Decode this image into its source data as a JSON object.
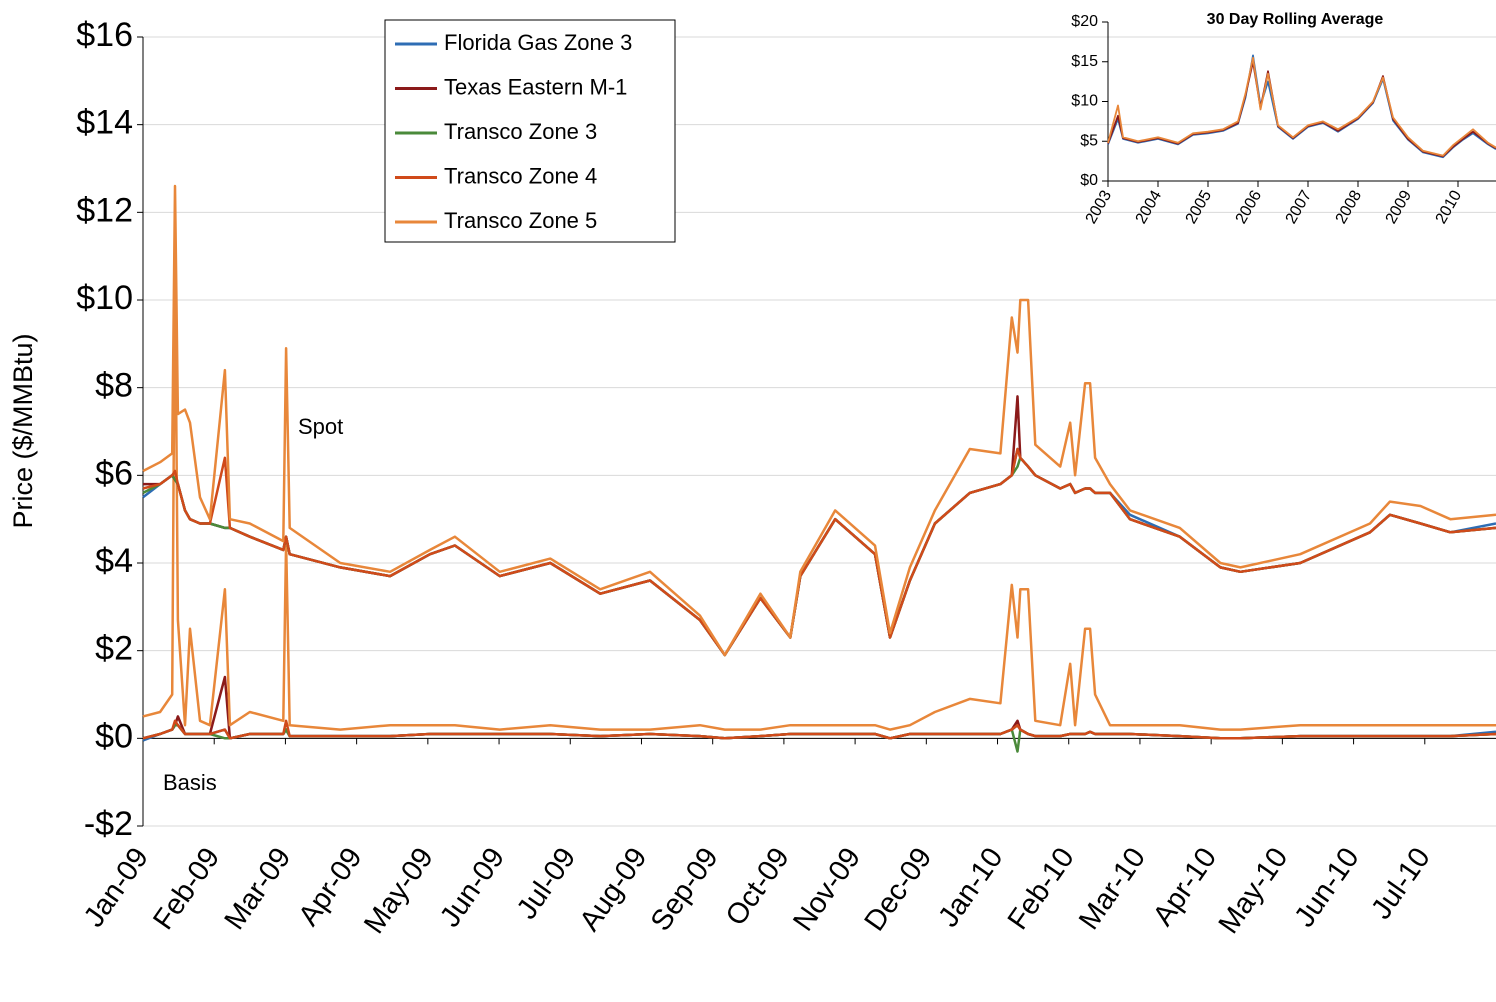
{
  "chart_data": [
    {
      "type": "line",
      "y_label": "Price ($/MMBtu)",
      "grid": true,
      "annotations": [
        "Spot",
        "Basis"
      ],
      "xlim": [
        0,
        19
      ],
      "xticks": [
        {
          "value": 0,
          "label": "Jan-09"
        },
        {
          "value": 1,
          "label": "Feb-09"
        },
        {
          "value": 2,
          "label": "Mar-09"
        },
        {
          "value": 3,
          "label": "Apr-09"
        },
        {
          "value": 4,
          "label": "May-09"
        },
        {
          "value": 5,
          "label": "Jun-09"
        },
        {
          "value": 6,
          "label": "Jul-09"
        },
        {
          "value": 7,
          "label": "Aug-09"
        },
        {
          "value": 8,
          "label": "Sep-09"
        },
        {
          "value": 9,
          "label": "Oct-09"
        },
        {
          "value": 10,
          "label": "Nov-09"
        },
        {
          "value": 11,
          "label": "Dec-09"
        },
        {
          "value": 12,
          "label": "Jan-10"
        },
        {
          "value": 13,
          "label": "Feb-10"
        },
        {
          "value": 14,
          "label": "Mar-10"
        },
        {
          "value": 15,
          "label": "Apr-10"
        },
        {
          "value": 16,
          "label": "May-10"
        },
        {
          "value": 17,
          "label": "Jun-10"
        },
        {
          "value": 18,
          "label": "Jul-10"
        }
      ],
      "ylim": [
        -2,
        16
      ],
      "yticks": [
        {
          "value": -2,
          "label": "-$2"
        },
        {
          "value": 0,
          "label": "$0"
        },
        {
          "value": 2,
          "label": "$2"
        },
        {
          "value": 4,
          "label": "$4"
        },
        {
          "value": 6,
          "label": "$6"
        },
        {
          "value": 8,
          "label": "$8"
        },
        {
          "value": 10,
          "label": "$10"
        },
        {
          "value": 12,
          "label": "$12"
        },
        {
          "value": 14,
          "label": "$14"
        },
        {
          "value": 16,
          "label": "$16"
        }
      ],
      "x": [
        0,
        0.24,
        0.41,
        0.45,
        0.49,
        0.59,
        0.66,
        0.8,
        0.94,
        1.15,
        1.22,
        1.5,
        1.97,
        2.01,
        2.06,
        2.77,
        3.47,
        4.03,
        4.38,
        5.01,
        5.72,
        6.42,
        7.12,
        7.82,
        8.17,
        8.67,
        9.09,
        9.23,
        9.72,
        10.28,
        10.49,
        10.77,
        11.12,
        11.61,
        12.04,
        12.2,
        12.28,
        12.32,
        12.43,
        12.53,
        12.88,
        13.02,
        13.09,
        13.23,
        13.3,
        13.37,
        13.58,
        13.86,
        14.56,
        15.13,
        15.41,
        16.25,
        17.23,
        17.51,
        17.94,
        18.36,
        19.0
      ],
      "series": [
        {
          "name": "Florida Gas Zone 3",
          "color": "#2e6db4",
          "values": [
            5.5,
            5.8,
            6.0,
            5.9,
            5.8,
            5.2,
            5.0,
            4.9,
            4.9,
            4.8,
            4.8,
            4.6,
            4.3,
            4.6,
            4.2,
            3.9,
            3.7,
            4.2,
            4.4,
            3.7,
            4.0,
            3.3,
            3.6,
            2.7,
            1.9,
            3.2,
            2.3,
            3.7,
            5.0,
            4.2,
            2.3,
            3.6,
            4.9,
            5.6,
            5.8,
            6.0,
            6.6,
            6.4,
            6.2,
            6.0,
            5.7,
            5.8,
            5.6,
            5.7,
            5.7,
            5.6,
            5.6,
            5.1,
            4.6,
            3.9,
            3.8,
            4.0,
            4.7,
            5.1,
            4.9,
            4.7,
            4.9
          ],
          "basis_values": [
            -0.05,
            0.1,
            0.2,
            0.3,
            0.3,
            0.1,
            0.1,
            0.1,
            0.1,
            0.2,
            0.0,
            0.1,
            0.1,
            0.2,
            0.05,
            0.05,
            0.05,
            0.1,
            0.1,
            0.1,
            0.1,
            0.05,
            0.1,
            0.05,
            0.0,
            0.05,
            0.1,
            0.1,
            0.1,
            0.1,
            0.0,
            0.1,
            0.1,
            0.1,
            0.1,
            0.2,
            0.3,
            0.2,
            0.1,
            0.05,
            0.05,
            0.1,
            0.1,
            0.1,
            0.15,
            0.1,
            0.1,
            0.1,
            0.05,
            0.0,
            0.0,
            0.05,
            0.05,
            0.05,
            0.05,
            0.05,
            0.15
          ]
        },
        {
          "name": "Texas Eastern M-1",
          "color": "#8b1a1a",
          "values": [
            5.8,
            5.8,
            6.0,
            5.9,
            5.8,
            5.2,
            5.0,
            4.9,
            4.9,
            4.8,
            4.8,
            4.6,
            4.3,
            4.6,
            4.2,
            3.9,
            3.7,
            4.2,
            4.4,
            3.7,
            4.0,
            3.3,
            3.6,
            2.7,
            1.9,
            3.2,
            2.3,
            3.7,
            5.0,
            4.2,
            2.3,
            3.6,
            4.9,
            5.6,
            5.8,
            6.0,
            7.8,
            6.4,
            6.2,
            6.0,
            5.7,
            5.8,
            5.6,
            5.7,
            5.7,
            5.6,
            5.6,
            5.0,
            4.6,
            3.9,
            3.8,
            4.0,
            4.7,
            5.1,
            4.9,
            4.7,
            4.8
          ],
          "basis_values": [
            0.0,
            0.1,
            0.2,
            0.3,
            0.5,
            0.1,
            0.1,
            0.1,
            0.1,
            1.4,
            0.0,
            0.1,
            0.1,
            0.2,
            0.05,
            0.05,
            0.05,
            0.1,
            0.1,
            0.1,
            0.1,
            0.05,
            0.1,
            0.05,
            0.0,
            0.05,
            0.1,
            0.1,
            0.1,
            0.1,
            0.0,
            0.1,
            0.1,
            0.1,
            0.1,
            0.2,
            0.4,
            0.2,
            0.1,
            0.05,
            0.05,
            0.1,
            0.1,
            0.1,
            0.15,
            0.1,
            0.1,
            0.1,
            0.05,
            0.0,
            0.0,
            0.05,
            0.05,
            0.05,
            0.05,
            0.05,
            0.1
          ]
        },
        {
          "name": "Transco Zone 3",
          "color": "#4a8a3a",
          "values": [
            5.6,
            5.8,
            6.0,
            5.9,
            5.8,
            5.2,
            5.0,
            4.9,
            4.9,
            4.8,
            4.8,
            4.6,
            4.3,
            4.6,
            4.2,
            3.9,
            3.7,
            4.2,
            4.4,
            3.7,
            4.0,
            3.3,
            3.6,
            2.7,
            1.9,
            3.2,
            2.3,
            3.7,
            5.0,
            4.2,
            2.3,
            3.6,
            4.9,
            5.6,
            5.8,
            6.0,
            6.2,
            6.4,
            6.2,
            6.0,
            5.7,
            5.8,
            5.6,
            5.7,
            5.7,
            5.6,
            5.6,
            5.0,
            4.6,
            3.9,
            3.8,
            4.0,
            4.7,
            5.1,
            4.9,
            4.7,
            4.8
          ],
          "basis_values": [
            0.0,
            0.1,
            0.2,
            0.3,
            0.3,
            0.1,
            0.1,
            0.1,
            0.1,
            0.0,
            0.0,
            0.1,
            0.1,
            0.2,
            0.05,
            0.05,
            0.05,
            0.1,
            0.1,
            0.1,
            0.1,
            0.05,
            0.1,
            0.05,
            0.0,
            0.05,
            0.1,
            0.1,
            0.1,
            0.1,
            0.0,
            0.1,
            0.1,
            0.1,
            0.1,
            0.2,
            -0.3,
            0.2,
            0.1,
            0.05,
            0.05,
            0.1,
            0.1,
            0.1,
            0.15,
            0.1,
            0.1,
            0.1,
            0.05,
            0.0,
            0.0,
            0.05,
            0.05,
            0.05,
            0.05,
            0.05,
            0.1
          ]
        },
        {
          "name": "Transco Zone 4",
          "color": "#d04a1a",
          "values": [
            5.7,
            5.8,
            6.0,
            6.1,
            5.8,
            5.2,
            5.0,
            4.9,
            4.9,
            6.4,
            4.8,
            4.6,
            4.3,
            4.6,
            4.2,
            3.9,
            3.7,
            4.2,
            4.4,
            3.7,
            4.0,
            3.3,
            3.6,
            2.7,
            1.9,
            3.2,
            2.3,
            3.7,
            5.0,
            4.2,
            2.3,
            3.6,
            4.9,
            5.6,
            5.8,
            6.0,
            6.6,
            6.4,
            6.2,
            6.0,
            5.7,
            5.8,
            5.6,
            5.7,
            5.7,
            5.6,
            5.6,
            5.0,
            4.6,
            3.9,
            3.8,
            4.0,
            4.7,
            5.1,
            4.9,
            4.7,
            4.8
          ],
          "basis_values": [
            0.0,
            0.1,
            0.2,
            0.4,
            0.3,
            0.1,
            0.1,
            0.1,
            0.1,
            0.2,
            0.0,
            0.1,
            0.1,
            0.4,
            0.05,
            0.05,
            0.05,
            0.1,
            0.1,
            0.1,
            0.1,
            0.05,
            0.1,
            0.05,
            0.0,
            0.05,
            0.1,
            0.1,
            0.1,
            0.1,
            0.0,
            0.1,
            0.1,
            0.1,
            0.1,
            0.2,
            0.3,
            0.2,
            0.1,
            0.05,
            0.05,
            0.1,
            0.1,
            0.1,
            0.15,
            0.1,
            0.1,
            0.1,
            0.05,
            0.0,
            0.0,
            0.05,
            0.05,
            0.05,
            0.05,
            0.05,
            0.1
          ]
        },
        {
          "name": "Transco Zone 5",
          "color": "#e8873a",
          "values": [
            6.1,
            6.3,
            6.5,
            12.6,
            7.4,
            7.5,
            7.2,
            5.5,
            5.0,
            8.4,
            5.0,
            4.9,
            4.5,
            8.9,
            4.8,
            4.0,
            3.8,
            4.3,
            4.6,
            3.8,
            4.1,
            3.4,
            3.8,
            2.8,
            1.9,
            3.3,
            2.3,
            3.8,
            5.2,
            4.4,
            2.4,
            3.9,
            5.2,
            6.6,
            6.5,
            9.6,
            8.8,
            10.0,
            10.0,
            6.7,
            6.2,
            7.2,
            6.0,
            8.1,
            8.1,
            6.4,
            5.8,
            5.2,
            4.8,
            4.0,
            3.9,
            4.2,
            4.9,
            5.4,
            5.3,
            5.0,
            5.1
          ],
          "basis_values": [
            0.5,
            0.6,
            1.0,
            11.0,
            2.7,
            0.3,
            2.5,
            0.4,
            0.3,
            3.4,
            0.3,
            0.6,
            0.4,
            4.5,
            0.3,
            0.2,
            0.3,
            0.3,
            0.3,
            0.2,
            0.3,
            0.2,
            0.2,
            0.3,
            0.2,
            0.2,
            0.3,
            0.3,
            0.3,
            0.3,
            0.2,
            0.3,
            0.6,
            0.9,
            0.8,
            3.5,
            2.3,
            3.4,
            3.4,
            0.4,
            0.3,
            1.7,
            0.3,
            2.5,
            2.5,
            1.0,
            0.3,
            0.3,
            0.3,
            0.2,
            0.2,
            0.3,
            0.3,
            0.3,
            0.3,
            0.3,
            0.3
          ]
        }
      ]
    },
    {
      "type": "line",
      "title": "30 Day Rolling Average",
      "grid": false,
      "xlim": [
        2003,
        2010.76
      ],
      "xticks": [
        2003,
        2004,
        2005,
        2006,
        2007,
        2008,
        2009,
        2010
      ],
      "ylim": [
        0,
        20
      ],
      "yticks": [
        {
          "value": 0,
          "label": "$0"
        },
        {
          "value": 5,
          "label": "$5"
        },
        {
          "value": 10,
          "label": "$10"
        },
        {
          "value": 15,
          "label": "$15"
        },
        {
          "value": 20,
          "label": "$20"
        }
      ],
      "x": [
        2003.0,
        2003.2,
        2003.3,
        2003.6,
        2004.0,
        2004.4,
        2004.7,
        2005.0,
        2005.3,
        2005.6,
        2005.75,
        2005.9,
        2006.05,
        2006.2,
        2006.4,
        2006.7,
        2007.0,
        2007.3,
        2007.6,
        2008.0,
        2008.3,
        2008.5,
        2008.7,
        2009.0,
        2009.3,
        2009.7,
        2009.9,
        2010.1,
        2010.3,
        2010.6,
        2010.76
      ],
      "series": [
        {
          "color": "#2e6db4",
          "values": [
            4.6,
            7.8,
            5.3,
            4.8,
            5.3,
            4.6,
            5.8,
            6.0,
            6.3,
            7.2,
            10.5,
            15.8,
            9.5,
            12.5,
            6.8,
            5.3,
            6.8,
            7.3,
            6.2,
            7.8,
            9.8,
            12.8,
            7.6,
            5.2,
            3.6,
            3.0,
            4.2,
            5.2,
            6.0,
            4.6,
            4.0
          ]
        },
        {
          "color": "#8b1a1a",
          "values": [
            4.7,
            8.2,
            5.4,
            4.9,
            5.4,
            4.7,
            5.9,
            6.1,
            6.4,
            7.3,
            10.8,
            15.0,
            9.2,
            13.8,
            6.9,
            5.4,
            6.9,
            7.4,
            6.3,
            7.9,
            9.9,
            13.2,
            7.8,
            5.3,
            3.7,
            3.1,
            4.3,
            5.3,
            6.2,
            4.7,
            4.1
          ]
        },
        {
          "color": "#e8873a",
          "values": [
            4.8,
            9.5,
            5.5,
            5.0,
            5.5,
            4.8,
            6.0,
            6.2,
            6.5,
            7.5,
            11,
            15.5,
            9,
            13.5,
            7,
            5.5,
            7,
            7.5,
            6.5,
            8,
            10,
            13,
            8,
            5.5,
            3.8,
            3.2,
            4.5,
            5.5,
            6.5,
            4.8,
            4.2
          ]
        }
      ]
    }
  ]
}
